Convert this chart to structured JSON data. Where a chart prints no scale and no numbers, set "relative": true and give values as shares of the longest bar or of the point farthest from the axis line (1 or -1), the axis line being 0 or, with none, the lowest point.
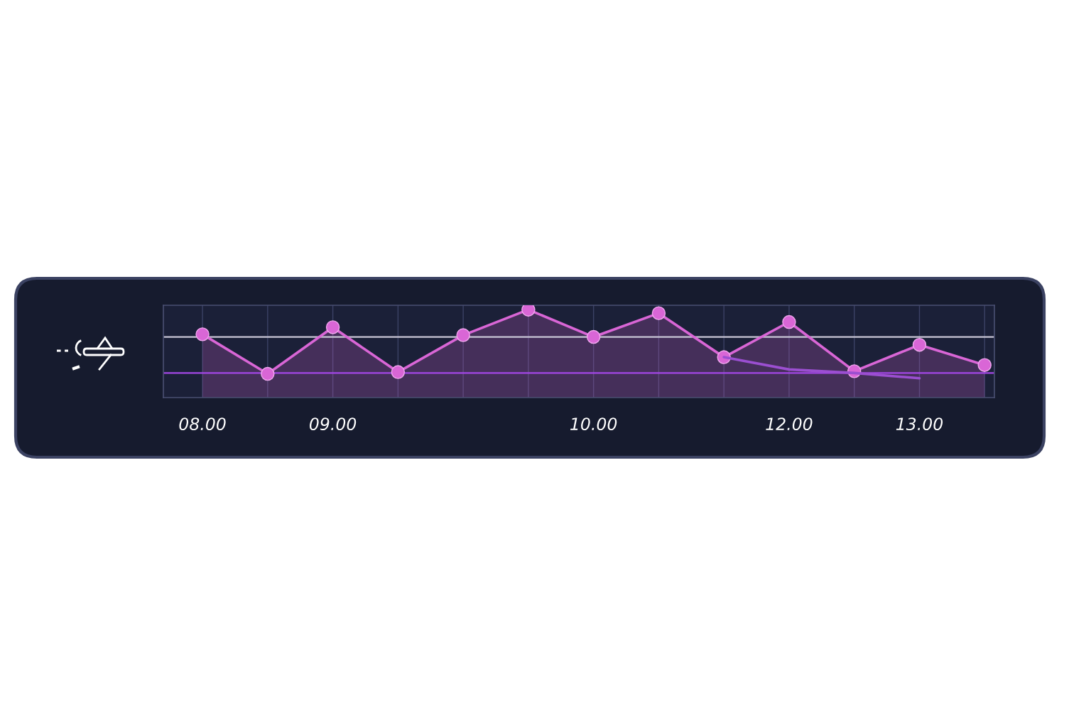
{
  "chart_data": {
    "type": "area",
    "relative": true,
    "categories": [
      "08.00",
      null,
      "09.00",
      null,
      null,
      null,
      "10.00",
      null,
      null,
      "12.00",
      null,
      "13.00",
      null
    ],
    "tick_labels": "x",
    "grid": "x",
    "marker": "circle",
    "series": [
      {
        "color": "#d966d6",
        "values": [
          0.72,
          0.27,
          0.8,
          0.29,
          0.71,
          1.0,
          0.69,
          0.96,
          0.46,
          0.86,
          0.3,
          0.6,
          0.37
        ]
      },
      {
        "type": "line",
        "marker": "none",
        "color": "#9b4fd1",
        "values": [
          null,
          null,
          null,
          null,
          null,
          null,
          null,
          null,
          0.46,
          0.32,
          0.28,
          0.22,
          null
        ]
      }
    ],
    "ref_lines": [
      {
        "axis": "y",
        "value": 0.69,
        "color": "#c9c6d6"
      },
      {
        "axis": "y",
        "value": 0.28,
        "color": "#a347e6"
      }
    ]
  }
}
